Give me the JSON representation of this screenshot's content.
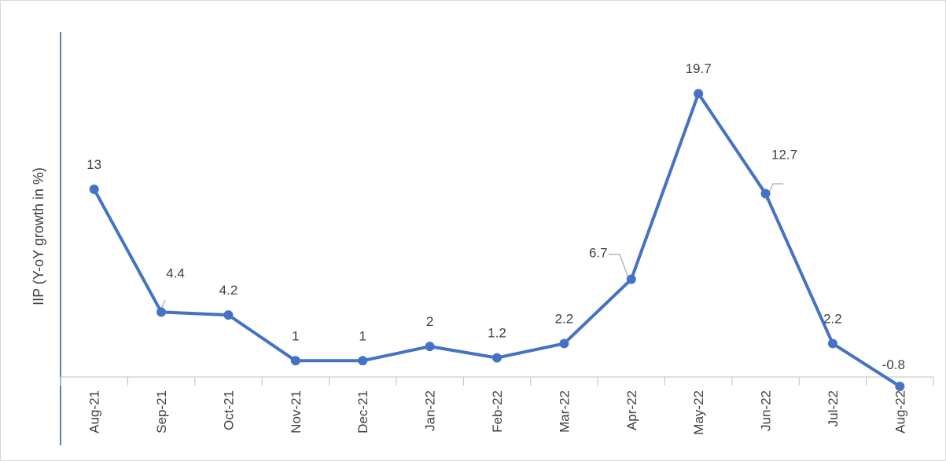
{
  "chart_data": {
    "type": "line",
    "title": "",
    "xlabel": "",
    "ylabel": "IIP (Y-oY growth in %)",
    "categories": [
      "Aug-21",
      "Sep-21",
      "Oct-21",
      "Nov-21",
      "Dec-21",
      "Jan-22",
      "Feb-22",
      "Mar-22",
      "Apr-22",
      "May-22",
      "Jun-22",
      "Jul-22",
      "Aug-22"
    ],
    "series": [
      {
        "values": [
          13,
          4.4,
          4.2,
          1,
          1,
          2,
          1.2,
          2.2,
          6.7,
          19.7,
          12.7,
          2.2,
          -0.8
        ]
      }
    ],
    "data_labels": [
      "13",
      "4.4",
      "4.2",
      "1",
      "1",
      "2",
      "1.2",
      "2.2",
      "6.7",
      "19.7",
      "12.7",
      "2.2",
      "-0.8"
    ],
    "ylim": [
      -0.8,
      24
    ],
    "grid": false,
    "legend": "none",
    "colors": {
      "line": "#4472c4",
      "axis": "#bfbfbf",
      "yaxis": "#2e5597",
      "text": "#404040",
      "leader": "#a6a6a6"
    }
  }
}
